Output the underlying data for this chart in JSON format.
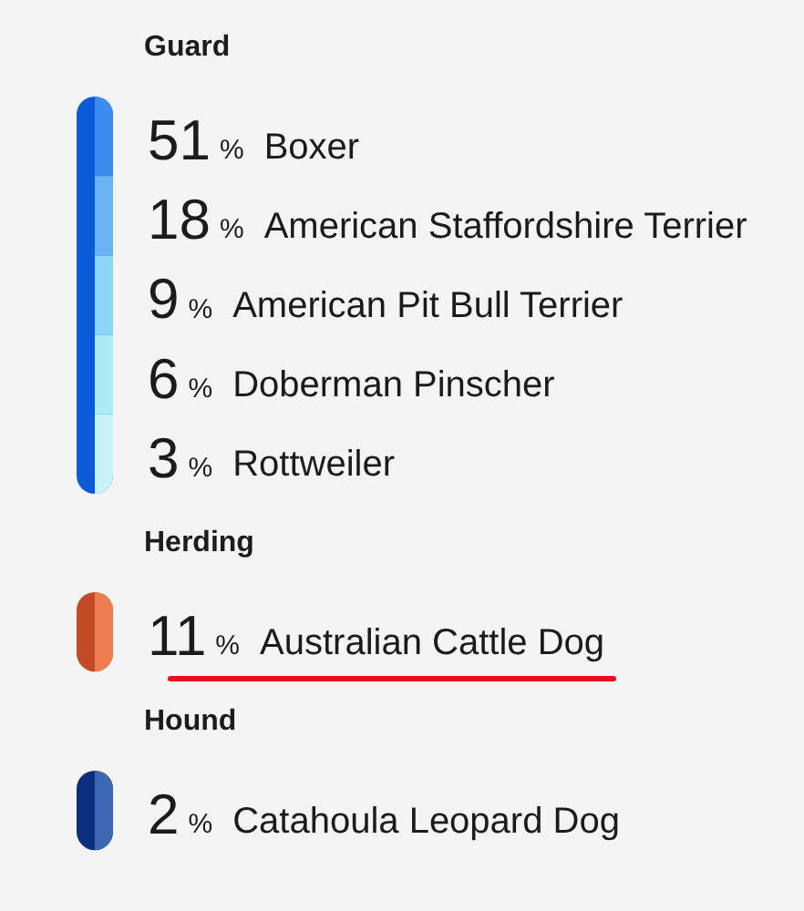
{
  "chart_data": [
    {
      "type": "other",
      "title": "Guard",
      "categories": [
        "Boxer",
        "American Staffordshire Terrier",
        "American Pit Bull Terrier",
        "Doberman Pinscher",
        "Rottweiler"
      ],
      "values": [
        51,
        18,
        9,
        6,
        3
      ],
      "value_labels": [
        "51 %",
        "18 %",
        "9 %",
        "6 %",
        "3 %"
      ],
      "color": "#0b5bd9",
      "colors": [
        "#3a8def",
        "#68b5f5",
        "#8ed6f6",
        "#acedf4",
        "#c9f4f7"
      ]
    },
    {
      "type": "other",
      "title": "Herding",
      "categories": [
        "Australian Cattle Dog"
      ],
      "values": [
        11
      ],
      "value_labels": [
        "11 %"
      ],
      "color": "#c24a24",
      "colors": [
        "#ef7d52"
      ]
    },
    {
      "type": "other",
      "title": "Hound",
      "categories": [
        "Catahoula Leopard Dog"
      ],
      "values": [
        2
      ],
      "value_labels": [
        "2 %"
      ],
      "color": "#0b2e7e",
      "colors": [
        "#3b67b3"
      ]
    }
  ]
}
